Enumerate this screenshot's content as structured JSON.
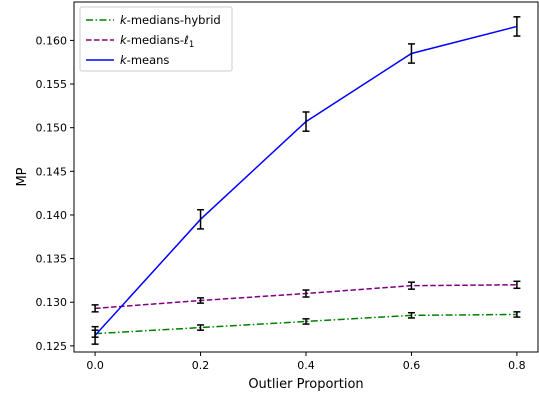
{
  "chart_data": {
    "type": "line",
    "xlabel": "Outlier Proportion",
    "ylabel": "MP",
    "xlim": [
      -0.04,
      0.84
    ],
    "ylim": [
      0.1243,
      0.1644
    ],
    "x_ticks": [
      0.0,
      0.2,
      0.4,
      0.6,
      0.8
    ],
    "x_tick_labels": [
      "0.0",
      "0.2",
      "0.4",
      "0.6",
      "0.8"
    ],
    "y_ticks": [
      0.125,
      0.13,
      0.135,
      0.14,
      0.145,
      0.15,
      0.155,
      0.16
    ],
    "y_tick_labels": [
      "0.125",
      "0.130",
      "0.135",
      "0.140",
      "0.145",
      "0.150",
      "0.155",
      "0.160"
    ],
    "grid": false,
    "legend_position": "top-left",
    "x": [
      0.0,
      0.2,
      0.4,
      0.6,
      0.8
    ],
    "series": [
      {
        "name_prefix": "k",
        "name_suffix": "-medians-hybrid",
        "color": "#008000",
        "dash": "dashdot",
        "values": [
          0.1264,
          0.1271,
          0.1278,
          0.1285,
          0.1286
        ],
        "errors": [
          0.0004,
          0.0003,
          0.0003,
          0.0003,
          0.0003
        ]
      },
      {
        "name_prefix": "k",
        "name_suffix": "-medians-",
        "name_math": "ℓ",
        "name_sub": "1",
        "color": "#800080",
        "dash": "dashed",
        "values": [
          0.1293,
          0.1302,
          0.131,
          0.1319,
          0.132
        ],
        "errors": [
          0.0004,
          0.0003,
          0.0004,
          0.0004,
          0.0004
        ]
      },
      {
        "name_prefix": "k",
        "name_suffix": "-means",
        "color": "#0000ff",
        "dash": "solid",
        "values": [
          0.1262,
          0.1395,
          0.1507,
          0.1585,
          0.1616
        ],
        "errors": [
          0.001,
          0.0011,
          0.0011,
          0.0011,
          0.0011
        ]
      }
    ]
  }
}
